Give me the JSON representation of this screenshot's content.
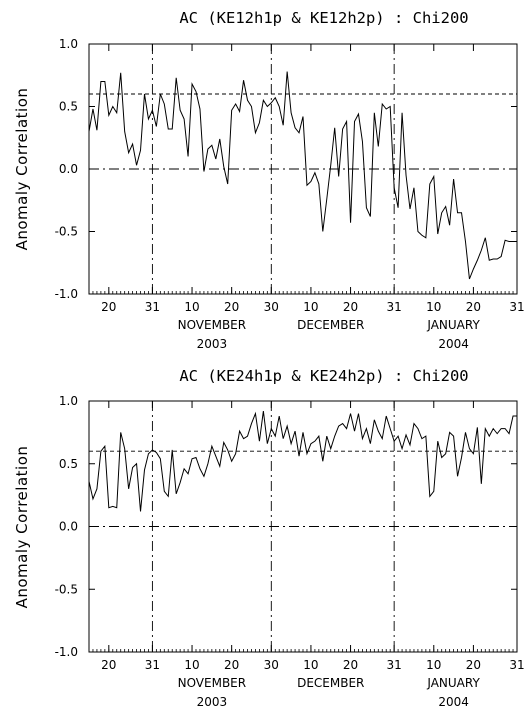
{
  "chart_data": [
    {
      "type": "line",
      "title": "AC (KE12h1p & KE12h2p) : Chi200",
      "ylabel": "Anomaly Correlation",
      "xlabel": "",
      "ylim": [
        -1.0,
        1.0
      ],
      "xlim": [
        "2003-10-15",
        "2004-01-31"
      ],
      "yticks": [
        "1.0",
        "0.5",
        "0.0",
        "-0.5",
        "-1.0"
      ],
      "xtick_labels": [
        "20",
        "31",
        "10",
        "20",
        "30",
        "10",
        "20",
        "31",
        "10",
        "20",
        "31"
      ],
      "month_labels": [
        "NOVEMBER",
        "DECEMBER",
        "JANUARY"
      ],
      "year_labels": [
        "2003",
        "2004"
      ],
      "reference_lines": [
        0.6,
        0.0
      ],
      "x": [
        "2003-10-15",
        "2003-10-16",
        "2003-10-17",
        "2003-10-18",
        "2003-10-19",
        "2003-10-20",
        "2003-10-21",
        "2003-10-22",
        "2003-10-23",
        "2003-10-24",
        "2003-10-25",
        "2003-10-26",
        "2003-10-27",
        "2003-10-28",
        "2003-10-29",
        "2003-10-30",
        "2003-10-31",
        "2003-11-01",
        "2003-11-02",
        "2003-11-03",
        "2003-11-04",
        "2003-11-05",
        "2003-11-06",
        "2003-11-07",
        "2003-11-08",
        "2003-11-09",
        "2003-11-10",
        "2003-11-11",
        "2003-11-12",
        "2003-11-13",
        "2003-11-14",
        "2003-11-15",
        "2003-11-16",
        "2003-11-17",
        "2003-11-18",
        "2003-11-19",
        "2003-11-20",
        "2003-11-21",
        "2003-11-22",
        "2003-11-23",
        "2003-11-24",
        "2003-11-25",
        "2003-11-26",
        "2003-11-27",
        "2003-11-28",
        "2003-11-29",
        "2003-11-30",
        "2003-12-01",
        "2003-12-02",
        "2003-12-03",
        "2003-12-04",
        "2003-12-05",
        "2003-12-06",
        "2003-12-07",
        "2003-12-08",
        "2003-12-09",
        "2003-12-10",
        "2003-12-11",
        "2003-12-12",
        "2003-12-13",
        "2003-12-14",
        "2003-12-15",
        "2003-12-16",
        "2003-12-17",
        "2003-12-18",
        "2003-12-19",
        "2003-12-20",
        "2003-12-21",
        "2003-12-22",
        "2003-12-23",
        "2003-12-24",
        "2003-12-25",
        "2003-12-26",
        "2003-12-27",
        "2003-12-28",
        "2003-12-29",
        "2003-12-30",
        "2003-12-31",
        "2004-01-01",
        "2004-01-02",
        "2004-01-03",
        "2004-01-04",
        "2004-01-05",
        "2004-01-06",
        "2004-01-07",
        "2004-01-08",
        "2004-01-09",
        "2004-01-10",
        "2004-01-11",
        "2004-01-12",
        "2004-01-13",
        "2004-01-14",
        "2004-01-15",
        "2004-01-16",
        "2004-01-17",
        "2004-01-18",
        "2004-01-19",
        "2004-01-20",
        "2004-01-21",
        "2004-01-22",
        "2004-01-23",
        "2004-01-24",
        "2004-01-25",
        "2004-01-26",
        "2004-01-27",
        "2004-01-28",
        "2004-01-29",
        "2004-01-30",
        "2004-01-31"
      ],
      "series": [
        {
          "values": [
            0.3,
            0.48,
            0.31,
            0.7,
            0.7,
            0.43,
            0.5,
            0.45,
            0.77,
            0.3,
            0.13,
            0.2,
            0.03,
            0.15,
            0.6,
            0.4,
            0.47,
            0.34,
            0.6,
            0.52,
            0.32,
            0.32,
            0.73,
            0.47,
            0.4,
            0.1,
            0.68,
            0.62,
            0.48,
            -0.02,
            0.16,
            0.19,
            0.08,
            0.24,
            0.02,
            -0.12,
            0.47,
            0.52,
            0.46,
            0.71,
            0.55,
            0.5,
            0.29,
            0.37,
            0.55,
            0.5,
            0.53,
            0.57,
            0.5,
            0.35,
            0.78,
            0.45,
            0.33,
            0.29,
            0.42,
            -0.13,
            -0.1,
            -0.03,
            -0.12,
            -0.5,
            -0.24,
            0.03,
            0.33,
            -0.06,
            0.32,
            0.38,
            -0.43,
            0.38,
            0.44,
            0.22,
            -0.31,
            -0.38,
            0.45,
            0.18,
            0.52,
            0.48,
            0.5,
            -0.15,
            -0.31,
            0.45,
            -0.05,
            -0.32,
            -0.15,
            -0.5,
            -0.53,
            -0.55,
            -0.12,
            -0.06,
            -0.52,
            -0.35,
            -0.3,
            -0.45,
            -0.08,
            -0.35,
            -0.35,
            -0.58,
            -0.88,
            -0.8,
            -0.73,
            -0.65,
            -0.55,
            -0.73,
            -0.72,
            -0.72,
            -0.7,
            -0.57,
            -0.58,
            -0.58,
            -0.58
          ]
        }
      ]
    },
    {
      "type": "line",
      "title": "AC (KE24h1p & KE24h2p) : Chi200",
      "ylabel": "Anomaly Correlation",
      "xlabel": "",
      "ylim": [
        -1.0,
        1.0
      ],
      "xlim": [
        "2003-10-15",
        "2004-01-31"
      ],
      "yticks": [
        "1.0",
        "0.5",
        "0.0",
        "-0.5",
        "-1.0"
      ],
      "xtick_labels": [
        "20",
        "31",
        "10",
        "20",
        "30",
        "10",
        "20",
        "31",
        "10",
        "20",
        "31"
      ],
      "month_labels": [
        "NOVEMBER",
        "DECEMBER",
        "JANUARY"
      ],
      "year_labels": [
        "2003",
        "2004"
      ],
      "reference_lines": [
        0.6,
        0.0
      ],
      "x": [
        "2003-10-15",
        "2003-10-16",
        "2003-10-17",
        "2003-10-18",
        "2003-10-19",
        "2003-10-20",
        "2003-10-21",
        "2003-10-22",
        "2003-10-23",
        "2003-10-24",
        "2003-10-25",
        "2003-10-26",
        "2003-10-27",
        "2003-10-28",
        "2003-10-29",
        "2003-10-30",
        "2003-10-31",
        "2003-11-01",
        "2003-11-02",
        "2003-11-03",
        "2003-11-04",
        "2003-11-05",
        "2003-11-06",
        "2003-11-07",
        "2003-11-08",
        "2003-11-09",
        "2003-11-10",
        "2003-11-11",
        "2003-11-12",
        "2003-11-13",
        "2003-11-14",
        "2003-11-15",
        "2003-11-16",
        "2003-11-17",
        "2003-11-18",
        "2003-11-19",
        "2003-11-20",
        "2003-11-21",
        "2003-11-22",
        "2003-11-23",
        "2003-11-24",
        "2003-11-25",
        "2003-11-26",
        "2003-11-27",
        "2003-11-28",
        "2003-11-29",
        "2003-11-30",
        "2003-12-01",
        "2003-12-02",
        "2003-12-03",
        "2003-12-04",
        "2003-12-05",
        "2003-12-06",
        "2003-12-07",
        "2003-12-08",
        "2003-12-09",
        "2003-12-10",
        "2003-12-11",
        "2003-12-12",
        "2003-12-13",
        "2003-12-14",
        "2003-12-15",
        "2003-12-16",
        "2003-12-17",
        "2003-12-18",
        "2003-12-19",
        "2003-12-20",
        "2003-12-21",
        "2003-12-22",
        "2003-12-23",
        "2003-12-24",
        "2003-12-25",
        "2003-12-26",
        "2003-12-27",
        "2003-12-28",
        "2003-12-29",
        "2003-12-30",
        "2003-12-31",
        "2004-01-01",
        "2004-01-02",
        "2004-01-03",
        "2004-01-04",
        "2004-01-05",
        "2004-01-06",
        "2004-01-07",
        "2004-01-08",
        "2004-01-09",
        "2004-01-10",
        "2004-01-11",
        "2004-01-12",
        "2004-01-13",
        "2004-01-14",
        "2004-01-15",
        "2004-01-16",
        "2004-01-17",
        "2004-01-18",
        "2004-01-19",
        "2004-01-20",
        "2004-01-21",
        "2004-01-22",
        "2004-01-23",
        "2004-01-24",
        "2004-01-25",
        "2004-01-26",
        "2004-01-27",
        "2004-01-28",
        "2004-01-29",
        "2004-01-30",
        "2004-01-31"
      ],
      "series": [
        {
          "values": [
            0.36,
            0.22,
            0.3,
            0.6,
            0.64,
            0.15,
            0.16,
            0.15,
            0.75,
            0.62,
            0.3,
            0.47,
            0.5,
            0.12,
            0.45,
            0.58,
            0.61,
            0.59,
            0.54,
            0.28,
            0.24,
            0.61,
            0.26,
            0.35,
            0.46,
            0.42,
            0.54,
            0.55,
            0.46,
            0.4,
            0.5,
            0.64,
            0.56,
            0.48,
            0.67,
            0.61,
            0.52,
            0.58,
            0.76,
            0.7,
            0.72,
            0.82,
            0.9,
            0.68,
            0.92,
            0.66,
            0.78,
            0.72,
            0.88,
            0.7,
            0.8,
            0.66,
            0.76,
            0.56,
            0.75,
            0.58,
            0.66,
            0.68,
            0.72,
            0.52,
            0.72,
            0.62,
            0.72,
            0.8,
            0.82,
            0.78,
            0.9,
            0.76,
            0.9,
            0.7,
            0.78,
            0.66,
            0.85,
            0.76,
            0.7,
            0.88,
            0.78,
            0.68,
            0.72,
            0.62,
            0.73,
            0.65,
            0.82,
            0.78,
            0.7,
            0.72,
            0.24,
            0.28,
            0.68,
            0.55,
            0.58,
            0.75,
            0.72,
            0.4,
            0.55,
            0.75,
            0.62,
            0.58,
            0.79,
            0.34,
            0.78,
            0.72,
            0.78,
            0.74,
            0.78,
            0.78,
            0.74,
            0.88,
            0.88
          ]
        }
      ]
    }
  ]
}
